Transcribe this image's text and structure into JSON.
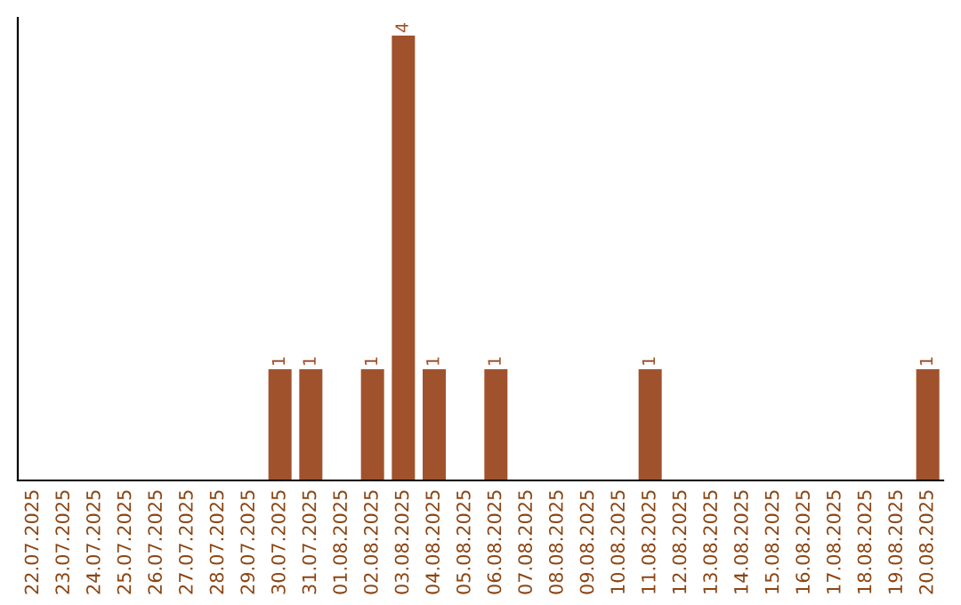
{
  "chart_data": {
    "type": "bar",
    "categories": [
      "22.07.2025",
      "23.07.2025",
      "24.07.2025",
      "25.07.2025",
      "26.07.2025",
      "27.07.2025",
      "28.07.2025",
      "29.07.2025",
      "30.07.2025",
      "31.07.2025",
      "01.08.2025",
      "02.08.2025",
      "03.08.2025",
      "04.08.2025",
      "05.08.2025",
      "06.08.2025",
      "07.08.2025",
      "08.08.2025",
      "09.08.2025",
      "10.08.2025",
      "11.08.2025",
      "12.08.2025",
      "13.08.2025",
      "14.08.2025",
      "15.08.2025",
      "16.08.2025",
      "17.08.2025",
      "18.08.2025",
      "19.08.2025",
      "20.08.2025"
    ],
    "values": [
      0,
      0,
      0,
      0,
      0,
      0,
      0,
      0,
      1,
      1,
      0,
      1,
      4,
      1,
      0,
      1,
      0,
      0,
      0,
      0,
      1,
      0,
      0,
      0,
      0,
      0,
      0,
      0,
      0,
      1
    ],
    "value_labels": [
      null,
      null,
      null,
      null,
      null,
      null,
      null,
      null,
      "1",
      "1",
      null,
      "1",
      "4",
      "1",
      null,
      "1",
      null,
      null,
      null,
      null,
      "1",
      null,
      null,
      null,
      null,
      null,
      null,
      null,
      null,
      "1"
    ],
    "color": "#a0522d",
    "tick_labels": "x",
    "grid": false,
    "legend": false
  }
}
